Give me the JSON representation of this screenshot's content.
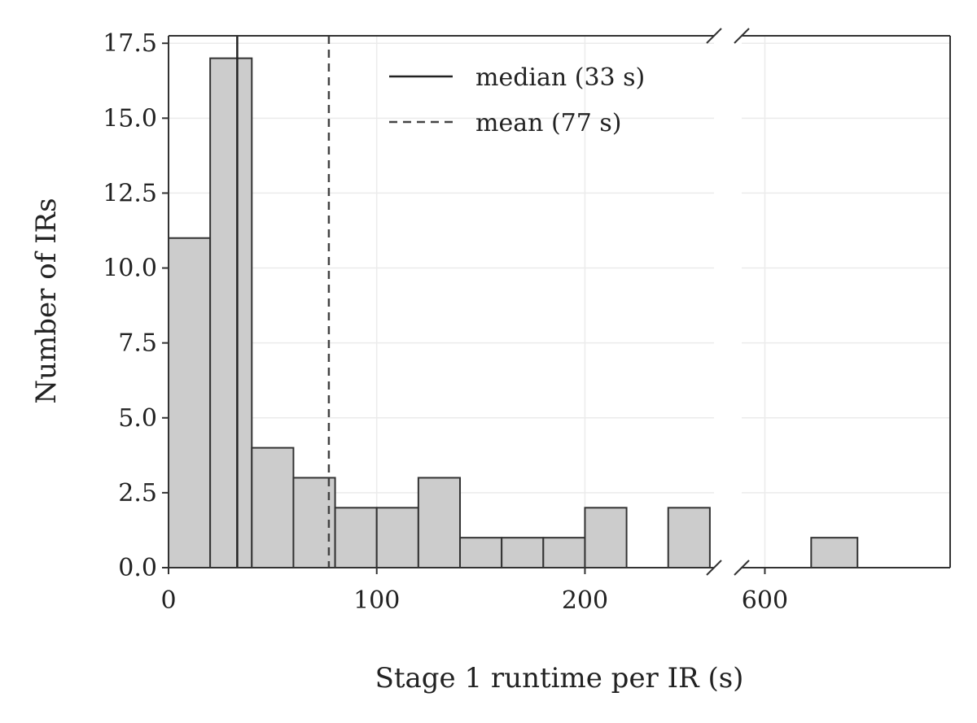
{
  "chart_data": {
    "type": "bar",
    "subtype": "histogram with broken x-axis",
    "title": "",
    "xlabel": "Stage 1 runtime per IR (s)",
    "ylabel": "Number of IRs",
    "ylim": [
      0,
      17.75
    ],
    "y_ticks": [
      0.0,
      2.5,
      5.0,
      7.5,
      10.0,
      12.5,
      15.0,
      17.5
    ],
    "y_tick_labels": [
      "0.0",
      "2.5",
      "5.0",
      "7.5",
      "10.0",
      "12.5",
      "15.0",
      "17.5"
    ],
    "grid": true,
    "x_segments": [
      {
        "xlim": [
          0,
          262
        ],
        "x_ticks": [
          0,
          100,
          200
        ],
        "x_tick_labels": [
          "0",
          "100",
          "200"
        ]
      },
      {
        "xlim": [
          590,
          680
        ],
        "x_ticks": [
          600
        ],
        "x_tick_labels": [
          "600"
        ]
      }
    ],
    "bins": [
      {
        "x0": 0,
        "x1": 20,
        "count": 11
      },
      {
        "x0": 20,
        "x1": 40,
        "count": 17
      },
      {
        "x0": 40,
        "x1": 60,
        "count": 4
      },
      {
        "x0": 60,
        "x1": 80,
        "count": 3
      },
      {
        "x0": 80,
        "x1": 100,
        "count": 2
      },
      {
        "x0": 100,
        "x1": 120,
        "count": 2
      },
      {
        "x0": 120,
        "x1": 140,
        "count": 3
      },
      {
        "x0": 140,
        "x1": 160,
        "count": 1
      },
      {
        "x0": 160,
        "x1": 180,
        "count": 1
      },
      {
        "x0": 180,
        "x1": 200,
        "count": 1
      },
      {
        "x0": 200,
        "x1": 220,
        "count": 2
      },
      {
        "x0": 220,
        "x1": 240,
        "count": 0
      },
      {
        "x0": 240,
        "x1": 260,
        "count": 2
      },
      {
        "x0": 580,
        "x1": 600,
        "count": 0
      },
      {
        "x0": 600,
        "x1": 620,
        "count": 0
      },
      {
        "x0": 620,
        "x1": 640,
        "count": 1
      },
      {
        "x0": 640,
        "x1": 660,
        "count": 0
      }
    ],
    "bar_color": "#cccccc",
    "bar_edge_color": "#333333",
    "reference_lines": [
      {
        "label": "median (33 s)",
        "value": 33,
        "style": "solid"
      },
      {
        "label": "mean (77 s)",
        "value": 77,
        "style": "dashed"
      }
    ],
    "legend_position": "top-center"
  }
}
